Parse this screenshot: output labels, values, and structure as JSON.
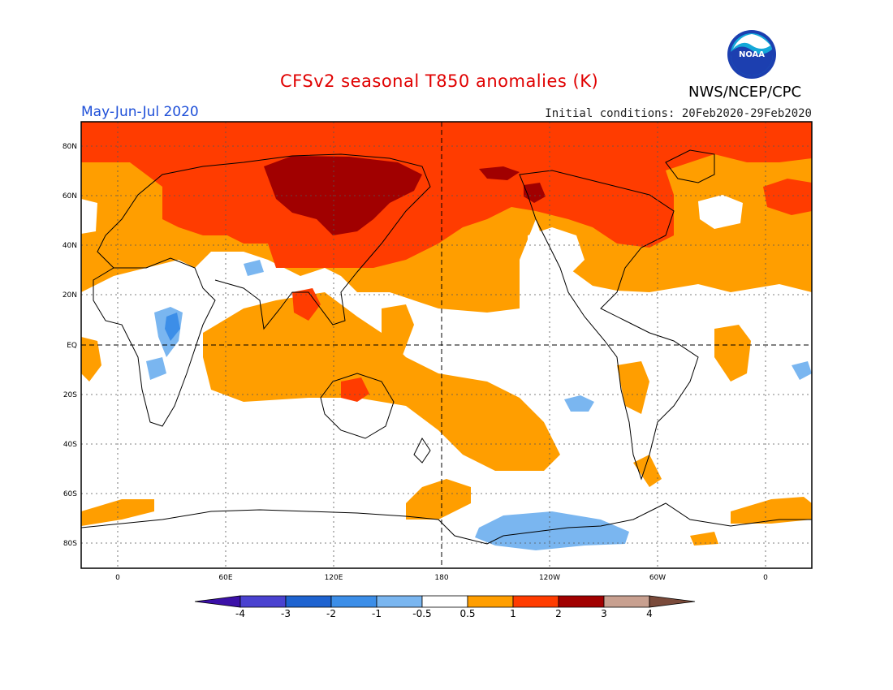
{
  "title": "CFSv2 seasonal T850 anomalies (K)",
  "season": "May-Jun-Jul 2020",
  "initial_conditions": "Initial conditions: 20Feb2020-29Feb2020",
  "agency": "NWS/NCEP/CPC",
  "logo_text": "NOAA",
  "lat_labels": [
    "80N",
    "60N",
    "40N",
    "20N",
    "EQ",
    "20S",
    "40S",
    "60S",
    "80S"
  ],
  "lon_labels": [
    "0",
    "60E",
    "120E",
    "180",
    "120W",
    "60W",
    "0"
  ],
  "colorbar": {
    "labels": [
      "-4",
      "-3",
      "-2",
      "-1",
      "-0.5",
      "0.5",
      "1",
      "2",
      "3",
      "4"
    ],
    "colors": [
      "#3b10a8",
      "#4a42d0",
      "#1e63d0",
      "#3c8ee8",
      "#7ab6f0",
      "#ffffff",
      "#ff9e00",
      "#ff3c00",
      "#a10000",
      "#c8a090",
      "#7a4a3a"
    ]
  },
  "colors": {
    "weak_warm": "#ff9e00",
    "moderate_warm": "#ff3c00",
    "strong_warm": "#a10000",
    "weak_cold": "#7ab6f0",
    "cold": "#3c8ee8"
  }
}
